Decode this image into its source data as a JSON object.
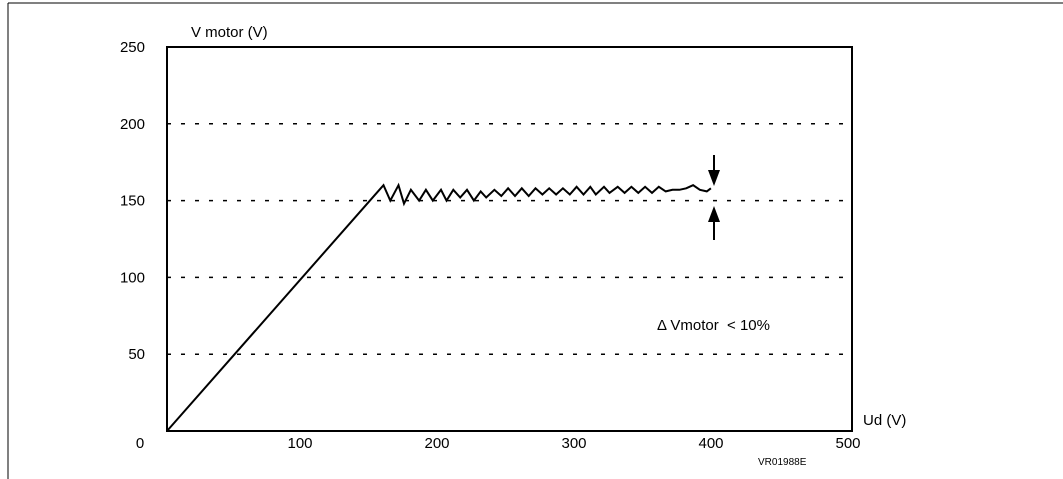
{
  "chart_data": {
    "type": "line",
    "ylabel": "V motor (V)",
    "xlabel": "Ud (V)",
    "xlim": [
      0,
      500
    ],
    "ylim": [
      0,
      250
    ],
    "x_ticks": [
      "0",
      "100",
      "200",
      "300",
      "400",
      "500"
    ],
    "y_ticks": [
      "250",
      "200",
      "150",
      "100",
      "50"
    ],
    "grid": "horizontal dashed at 50, 100, 150, 200",
    "annotation": "Δ Vmotor  < 10%",
    "code": "VR01988E",
    "series": [
      {
        "x": [
          0,
          155,
          158,
          163,
          169,
          173,
          178,
          184,
          189,
          194,
          200,
          204,
          209,
          214,
          219,
          224,
          229,
          233,
          239,
          244,
          249,
          254,
          259,
          264,
          269,
          274,
          279,
          284,
          289,
          294,
          299,
          304,
          309,
          313,
          319,
          323,
          329,
          334,
          339,
          344,
          349,
          354,
          359,
          364,
          369,
          374,
          379,
          384,
          389,
          394,
          397
        ],
        "y": [
          0,
          157,
          160,
          150,
          160,
          148,
          157,
          150,
          157,
          150,
          157,
          150,
          157,
          152,
          157,
          150,
          156,
          152,
          157,
          153,
          158,
          153,
          158,
          153,
          158,
          154,
          158,
          154,
          158,
          154,
          159,
          154,
          159,
          154,
          159,
          155,
          159,
          155,
          159,
          155,
          159,
          155,
          159,
          156,
          157,
          157,
          158,
          160,
          157,
          156,
          158
        ]
      }
    ],
    "delta_arrows_x": 400
  }
}
